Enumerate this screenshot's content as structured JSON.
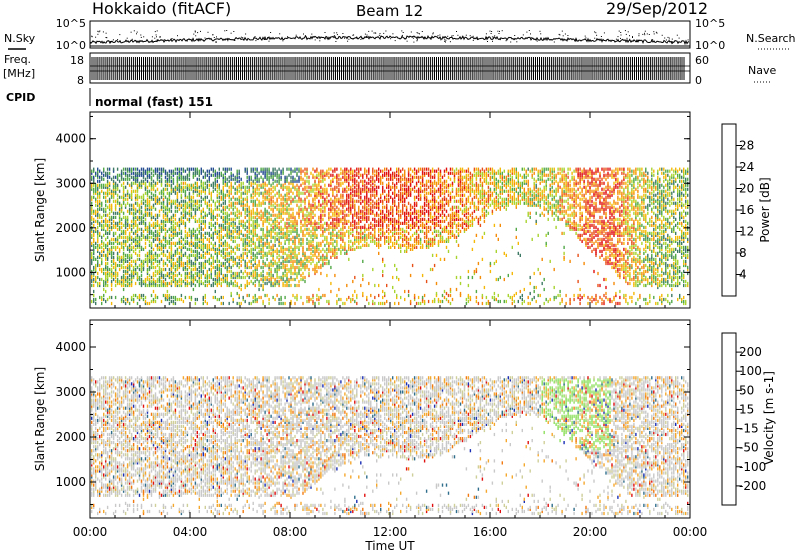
{
  "header": {
    "station": "Hokkaido (fitACF)",
    "beam": "Beam 12",
    "date": "29/Sep/2012"
  },
  "top_panels": {
    "nsky_label": "N.Sky",
    "nsearch_label": "N.Search",
    "noise_ticks_left": [
      "10^5",
      "10^0"
    ],
    "noise_ticks_right": [
      "10^5",
      "10^0"
    ],
    "freq_label": "Freq.",
    "freq_unit": "[MHz]",
    "freq_ticks": [
      "18",
      "8"
    ],
    "nave_label": "Nave",
    "nave_ticks": [
      "60",
      "0"
    ],
    "cpid_label": "CPID",
    "cpid_text": "normal (fast) 151"
  },
  "colors": {
    "power": [
      "#0a19f2",
      "#264c91",
      "#3f7a67",
      "#53a848",
      "#a9d430",
      "#f5b808",
      "#f58c0a",
      "#e8501a",
      "#e01010"
    ],
    "velocity": [
      "#e01010",
      "#f27a10",
      "#f5a82e",
      "#cfcf9a",
      "#c9c9c9",
      "#8fe060",
      "#46a04a",
      "#2f6e8c",
      "#1b2fb5"
    ]
  },
  "chart_data": [
    {
      "type": "heatmap",
      "title": "Power",
      "ylabel": "Slant Range [km]",
      "ylim": [
        200,
        4600
      ],
      "y_ticks": [
        "1000",
        "2000",
        "3000",
        "4000"
      ],
      "colorbar_label": "Power [dB]",
      "colorbar_ticks": [
        "4",
        "8",
        "12",
        "16",
        "20",
        "24",
        "28"
      ],
      "colorbar_range": [
        0,
        32
      ]
    },
    {
      "type": "heatmap",
      "title": "Velocity",
      "ylabel": "Slant Range [km]",
      "xlabel": "Time UT",
      "x_ticks": [
        "00:00",
        "04:00",
        "08:00",
        "12:00",
        "16:00",
        "20:00",
        "00:00"
      ],
      "ylim": [
        200,
        4600
      ],
      "y_ticks": [
        "1000",
        "2000",
        "3000",
        "4000"
      ],
      "colorbar_label": "Velocity [m s-1]",
      "colorbar_ticks": [
        "200",
        "100",
        "50",
        "15",
        "-15",
        "-50",
        "-100",
        "-200"
      ]
    }
  ]
}
